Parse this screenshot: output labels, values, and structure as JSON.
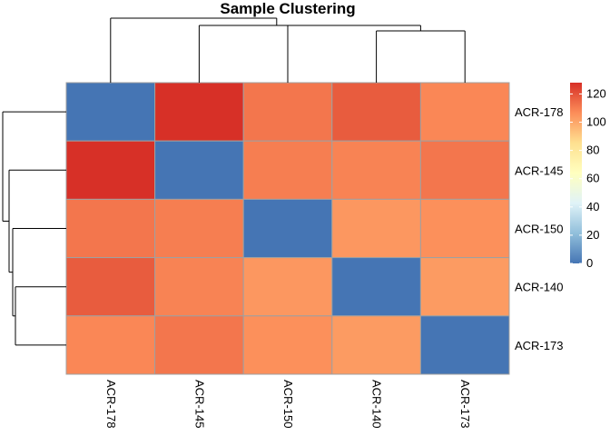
{
  "chart_data": {
    "type": "heatmap",
    "title": "Sample Clustering",
    "rows": [
      "ACR-178",
      "ACR-145",
      "ACR-150",
      "ACR-140",
      "ACR-173"
    ],
    "columns": [
      "ACR-178",
      "ACR-145",
      "ACR-150",
      "ACR-140",
      "ACR-173"
    ],
    "values": [
      [
        0,
        128,
        112,
        118,
        108
      ],
      [
        128,
        0,
        110,
        109,
        112
      ],
      [
        112,
        110,
        0,
        104,
        106
      ],
      [
        118,
        109,
        104,
        0,
        103
      ],
      [
        108,
        112,
        106,
        103,
        0
      ]
    ],
    "color_scale": {
      "min": 0,
      "max": 128,
      "stops": [
        "#4575b4",
        "#91bfdb",
        "#e0f3f8",
        "#ffffbf",
        "#fee090",
        "#fc8d59",
        "#d73027"
      ]
    },
    "legend": {
      "ticks": [
        0,
        20,
        40,
        60,
        80,
        100,
        120
      ],
      "placement": "right"
    },
    "grid": true,
    "col_dendrogram": "top",
    "row_dendrogram": "left"
  }
}
